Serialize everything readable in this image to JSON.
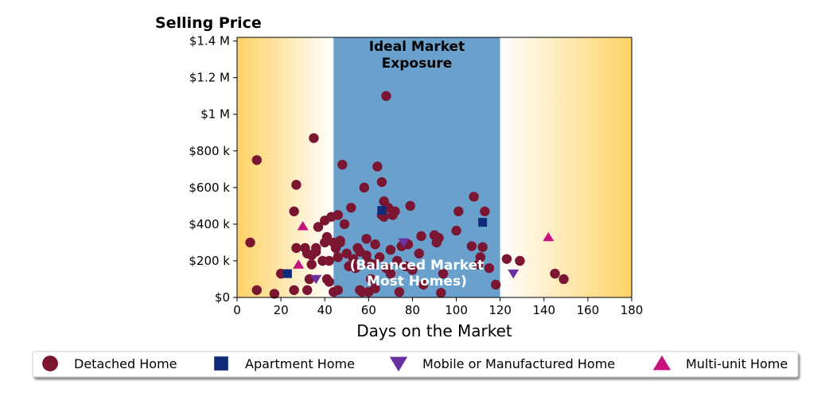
{
  "chart_data": {
    "type": "scatter",
    "ylabel": "Selling Price",
    "xlabel": "Days on the Market",
    "xlim": [
      0,
      180
    ],
    "ylim": [
      0,
      1420000
    ],
    "x_ticks": [
      0,
      20,
      40,
      60,
      80,
      100,
      120,
      140,
      160,
      180
    ],
    "x_tick_labels": [
      "0",
      "20",
      "40",
      "60",
      "80",
      "100",
      "120",
      "140",
      "160",
      "180"
    ],
    "y_ticks": [
      0,
      200000,
      400000,
      600000,
      800000,
      1000000,
      1200000,
      1400000
    ],
    "y_tick_labels": [
      "$0",
      "$200 k",
      "$400 k",
      "$600 k",
      "$800 k",
      "$1 M",
      "$1.2 M",
      "$1.4 M"
    ],
    "ideal_range": [
      44,
      120
    ],
    "annotation_top": [
      "Ideal Market",
      "Exposure"
    ],
    "annotation_bottom": [
      "(Balanced Market",
      "Most Homes)"
    ],
    "colors": {
      "ideal_band": "#6aa0cc",
      "edge_gold": "#fed266",
      "fade_white": "#ffffff"
    },
    "legend_position": "bottom",
    "series": [
      {
        "name": "Detached Home",
        "marker": "circle",
        "color": "#7a1632",
        "points": [
          [
            6,
            300000
          ],
          [
            9,
            750000
          ],
          [
            9,
            40000
          ],
          [
            17,
            20000
          ],
          [
            20,
            130000
          ],
          [
            26,
            470000
          ],
          [
            26,
            40000
          ],
          [
            27,
            615000
          ],
          [
            27,
            270000
          ],
          [
            31,
            270000
          ],
          [
            32,
            240000
          ],
          [
            32,
            40000
          ],
          [
            33,
            100000
          ],
          [
            34,
            230000
          ],
          [
            34,
            180000
          ],
          [
            35,
            870000
          ],
          [
            36,
            270000
          ],
          [
            36,
            250000
          ],
          [
            37,
            385000
          ],
          [
            39,
            200000
          ],
          [
            40,
            420000
          ],
          [
            40,
            300000
          ],
          [
            41,
            330000
          ],
          [
            41,
            100000
          ],
          [
            42,
            200000
          ],
          [
            42,
            85000
          ],
          [
            43,
            440000
          ],
          [
            44,
            300000
          ],
          [
            44,
            30000
          ],
          [
            45,
            270000
          ],
          [
            46,
            450000
          ],
          [
            46,
            220000
          ],
          [
            46,
            40000
          ],
          [
            47,
            310000
          ],
          [
            47,
            300000
          ],
          [
            48,
            725000
          ],
          [
            49,
            400000
          ],
          [
            50,
            240000
          ],
          [
            51,
            170000
          ],
          [
            52,
            490000
          ],
          [
            53,
            210000
          ],
          [
            54,
            160000
          ],
          [
            55,
            270000
          ],
          [
            56,
            250000
          ],
          [
            56,
            40000
          ],
          [
            57,
            30000
          ],
          [
            58,
            600000
          ],
          [
            59,
            320000
          ],
          [
            59,
            230000
          ],
          [
            60,
            190000
          ],
          [
            60,
            30000
          ],
          [
            61,
            100000
          ],
          [
            62,
            180000
          ],
          [
            63,
            290000
          ],
          [
            63,
            50000
          ],
          [
            64,
            715000
          ],
          [
            65,
            220000
          ],
          [
            66,
            630000
          ],
          [
            66,
            450000
          ],
          [
            67,
            525000
          ],
          [
            67,
            440000
          ],
          [
            68,
            1100000
          ],
          [
            68,
            160000
          ],
          [
            69,
            490000
          ],
          [
            70,
            260000
          ],
          [
            70,
            130000
          ],
          [
            71,
            450000
          ],
          [
            72,
            470000
          ],
          [
            73,
            200000
          ],
          [
            74,
            30000
          ],
          [
            75,
            280000
          ],
          [
            76,
            290000
          ],
          [
            77,
            170000
          ],
          [
            78,
            290000
          ],
          [
            79,
            500000
          ],
          [
            80,
            150000
          ],
          [
            83,
            240000
          ],
          [
            84,
            335000
          ],
          [
            85,
            70000
          ],
          [
            90,
            340000
          ],
          [
            91,
            300000
          ],
          [
            92,
            325000
          ],
          [
            93,
            25000
          ],
          [
            94,
            130000
          ],
          [
            100,
            365000
          ],
          [
            101,
            470000
          ],
          [
            107,
            280000
          ],
          [
            108,
            550000
          ],
          [
            110,
            180000
          ],
          [
            111,
            220000
          ],
          [
            112,
            275000
          ],
          [
            113,
            470000
          ],
          [
            115,
            160000
          ],
          [
            118,
            70000
          ],
          [
            123,
            210000
          ],
          [
            129,
            200000
          ],
          [
            145,
            130000
          ],
          [
            149,
            100000
          ]
        ]
      },
      {
        "name": "Apartment Home",
        "marker": "square",
        "color": "#0f2a78",
        "points": [
          [
            23,
            130000
          ],
          [
            66,
            475000
          ],
          [
            112,
            410000
          ]
        ]
      },
      {
        "name": "Mobile or Manufactured Home",
        "marker": "triangle-down",
        "color": "#6a2fa0",
        "points": [
          [
            36,
            100000
          ],
          [
            76,
            300000
          ],
          [
            126,
            130000
          ]
        ]
      },
      {
        "name": "Multi-unit Home",
        "marker": "triangle-up",
        "color": "#c4127f",
        "points": [
          [
            28,
            180000
          ],
          [
            30,
            390000
          ],
          [
            142,
            330000
          ]
        ]
      }
    ]
  }
}
